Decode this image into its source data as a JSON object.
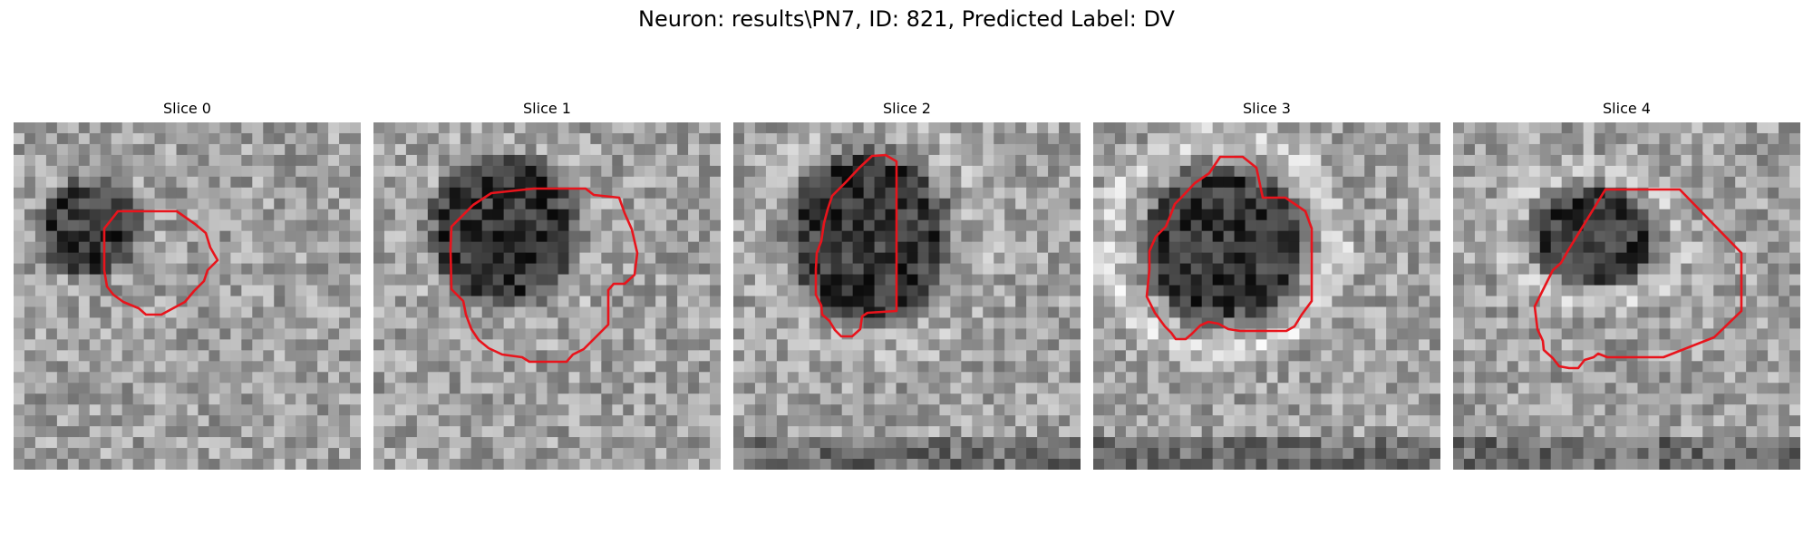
{
  "figure": {
    "title": "Neuron: results\\PN7, ID: 821, Predicted Label: DV"
  },
  "slices": [
    {
      "title": "Slice 0"
    },
    {
      "title": "Slice 1"
    },
    {
      "title": "Slice 2"
    },
    {
      "title": "Slice 3"
    },
    {
      "title": "Slice 4"
    }
  ],
  "colors": {
    "contour": "#e8141c",
    "background": "#ffffff"
  }
}
